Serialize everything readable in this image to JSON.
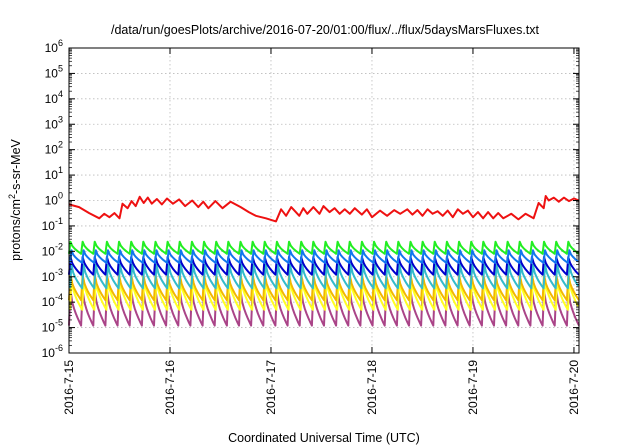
{
  "chart_data": {
    "type": "line",
    "title": "/data/run/goesPlots/archive/2016-07-20/01:00/flux/../flux/5daysMarsFluxes.txt",
    "xlabel": "Coordinated Universal Time (UTC)",
    "ylabel_parts": [
      "protons/cm",
      "2",
      "-s-sr-MeV"
    ],
    "yscale": "log",
    "ylim_exp": [
      -6,
      6
    ],
    "y_tick_exponents": [
      -6,
      -5,
      -4,
      -3,
      -2,
      -1,
      0,
      1,
      2,
      3,
      4,
      5,
      6
    ],
    "y_tick_base": "10",
    "x_range_days": [
      0,
      5.05
    ],
    "x_tick_labels": [
      "2016-7-15",
      "2016-7-16",
      "2016-7-17",
      "2016-7-18",
      "2016-7-19",
      "2016-7-20"
    ],
    "grid": true,
    "series_colors": {
      "red": "#ee1111",
      "green": "#22ee22",
      "blue1": "#1177ee",
      "blue2": "#0000cc",
      "cyan": "#33bbcc",
      "yellow": "#ffff22",
      "orange": "#f2b800",
      "purple": "#aa4488"
    },
    "red_series": {
      "x": [
        0.0,
        0.1,
        0.2,
        0.3,
        0.35,
        0.4,
        0.45,
        0.5,
        0.53,
        0.58,
        0.62,
        0.66,
        0.7,
        0.74,
        0.78,
        0.82,
        0.87,
        0.92,
        0.97,
        1.03,
        1.09,
        1.15,
        1.22,
        1.28,
        1.33,
        1.38,
        1.45,
        1.52,
        1.6,
        1.7,
        1.78,
        1.85,
        1.95,
        2.05,
        2.1,
        2.15,
        2.2,
        2.28,
        2.32,
        2.36,
        2.42,
        2.48,
        2.52,
        2.58,
        2.63,
        2.68,
        2.73,
        2.78,
        2.83,
        2.9,
        2.95,
        3.0,
        3.08,
        3.15,
        3.22,
        3.28,
        3.35,
        3.4,
        3.45,
        3.5,
        3.55,
        3.6,
        3.65,
        3.7,
        3.75,
        3.8,
        3.85,
        3.9,
        3.95,
        4.0,
        4.05,
        4.1,
        4.15,
        4.2,
        4.25,
        4.3,
        4.38,
        4.45,
        4.52,
        4.6,
        4.65,
        4.7,
        4.72,
        4.75,
        4.8,
        4.85,
        4.9,
        4.95,
        5.0,
        5.05
      ],
      "y": [
        0.7,
        0.55,
        0.32,
        0.2,
        0.3,
        0.22,
        0.32,
        0.2,
        0.75,
        0.5,
        0.95,
        0.6,
        1.4,
        0.8,
        1.3,
        0.75,
        1.15,
        0.7,
        1.2,
        0.75,
        1.1,
        0.6,
        1.0,
        0.55,
        0.9,
        0.5,
        0.95,
        0.5,
        0.9,
        0.55,
        0.35,
        0.25,
        0.2,
        0.15,
        0.45,
        0.25,
        0.55,
        0.25,
        0.5,
        0.3,
        0.55,
        0.3,
        0.6,
        0.35,
        0.5,
        0.3,
        0.45,
        0.3,
        0.5,
        0.28,
        0.45,
        0.22,
        0.4,
        0.25,
        0.42,
        0.3,
        0.45,
        0.28,
        0.42,
        0.25,
        0.45,
        0.3,
        0.38,
        0.25,
        0.4,
        0.22,
        0.45,
        0.3,
        0.4,
        0.22,
        0.35,
        0.2,
        0.35,
        0.2,
        0.32,
        0.2,
        0.3,
        0.18,
        0.3,
        0.2,
        0.8,
        0.5,
        1.5,
        1.0,
        1.3,
        0.9,
        1.3,
        0.95,
        1.2,
        1.0
      ]
    },
    "sawtooth_series": {
      "teeth": 42,
      "green": {
        "peak": 0.024,
        "trough": 0.008
      },
      "blue1": {
        "peak": 0.011,
        "trough": 0.0035
      },
      "blue2": {
        "peak": 0.006,
        "trough": 0.0012
      },
      "cyan": {
        "peak": 0.003,
        "trough": 0.00035
      },
      "orange": {
        "peak": 0.0012,
        "trough": 0.00012
      },
      "yellow": {
        "peak": 0.0008,
        "trough": 5e-05
      },
      "purple": {
        "peak": 0.0003,
        "trough": 1.2e-05
      }
    }
  }
}
